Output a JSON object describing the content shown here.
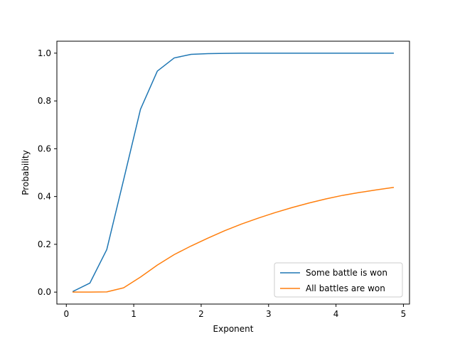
{
  "chart_data": {
    "type": "line",
    "title": "",
    "xlabel": "Exponent",
    "ylabel": "Probability",
    "xlim": [
      -0.14,
      5.09
    ],
    "ylim": [
      -0.05,
      1.05
    ],
    "xticks": [
      0,
      1,
      2,
      3,
      4,
      5
    ],
    "yticks": [
      0.0,
      0.2,
      0.4,
      0.6,
      0.8,
      1.0
    ],
    "xtick_labels": [
      "0",
      "1",
      "2",
      "3",
      "4",
      "5"
    ],
    "ytick_labels": [
      "0.0",
      "0.2",
      "0.4",
      "0.6",
      "0.8",
      "1.0"
    ],
    "grid": false,
    "legend_position": "lower-right",
    "x": [
      0.1,
      0.35,
      0.6,
      0.85,
      1.1,
      1.35,
      1.6,
      1.85,
      2.1,
      2.35,
      2.6,
      2.85,
      3.1,
      3.35,
      3.6,
      3.85,
      4.1,
      4.35,
      4.6,
      4.85
    ],
    "series": [
      {
        "name": "Some battle is won",
        "color": "#1f77b4",
        "values": [
          0.003,
          0.038,
          0.178,
          0.47,
          0.765,
          0.925,
          0.98,
          0.995,
          0.998,
          0.999,
          1.0,
          1.0,
          1.0,
          1.0,
          1.0,
          1.0,
          1.0,
          1.0,
          1.0,
          1.0
        ]
      },
      {
        "name": "All battles are won",
        "color": "#ff7f0e",
        "values": [
          0.0,
          0.0,
          0.001,
          0.018,
          0.063,
          0.113,
          0.157,
          0.193,
          0.226,
          0.257,
          0.285,
          0.31,
          0.333,
          0.354,
          0.373,
          0.39,
          0.405,
          0.417,
          0.428,
          0.438
        ]
      }
    ]
  }
}
